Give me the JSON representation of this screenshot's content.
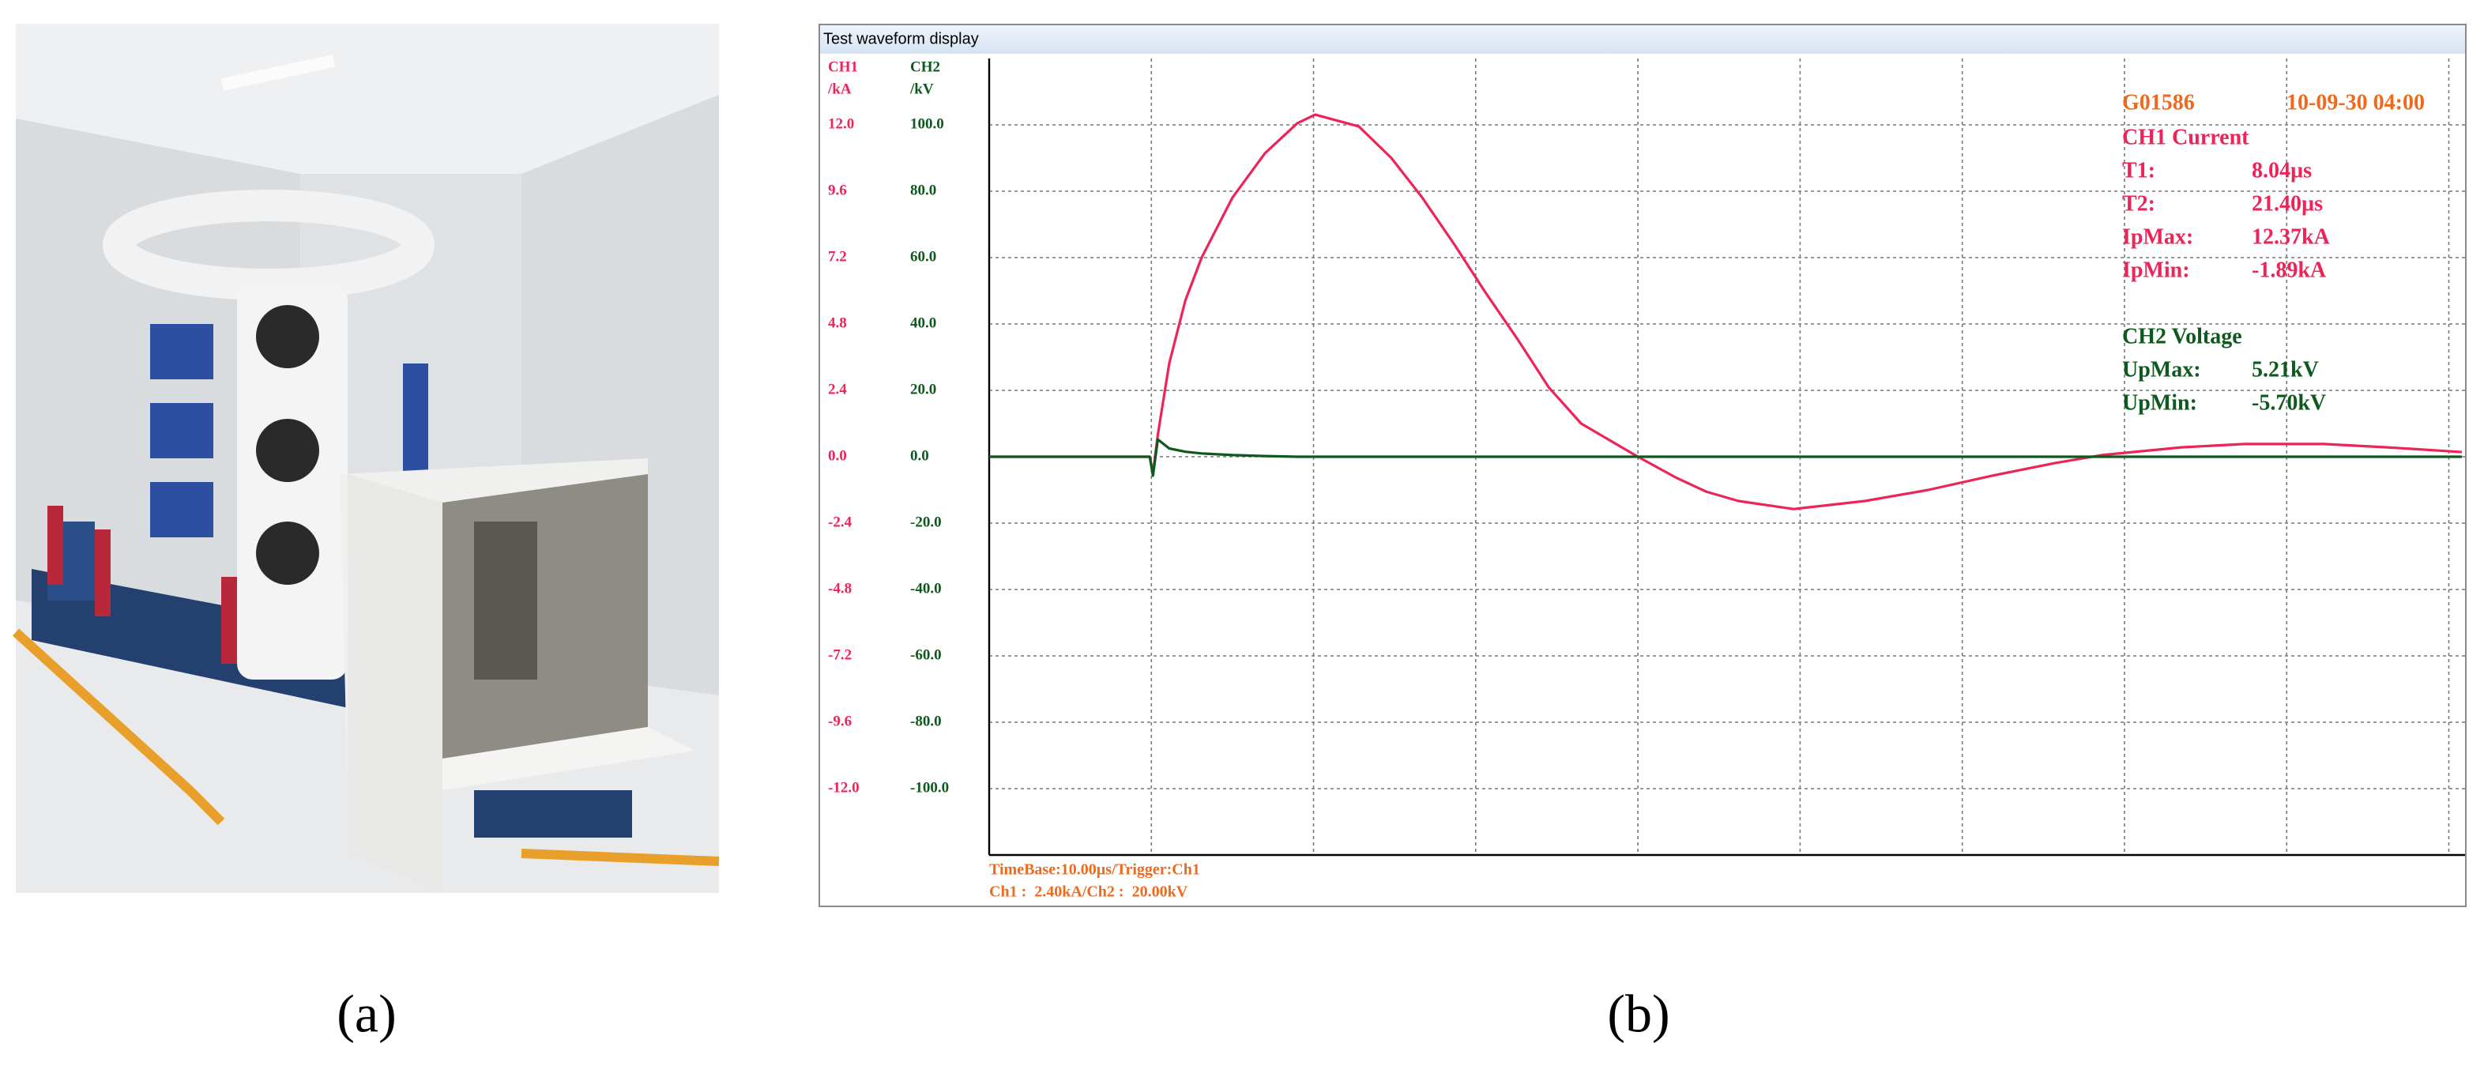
{
  "window_title": "Test waveform display",
  "panel_labels": [
    "(a)",
    "(b)"
  ],
  "chart_data": {
    "type": "line",
    "ylabel": "CH1",
    "yunit": "/kA",
    "y2label": "CH2",
    "y2unit": "/kV",
    "x": [
      0,
      5,
      9.9,
      10.1,
      10.4,
      11.1,
      12.1,
      13.1,
      15,
      17,
      19,
      20.1,
      22.8,
      24.8,
      26.7,
      28.7,
      30.6,
      32.6,
      34.5,
      36.5,
      40,
      42.3,
      44.2,
      46.2,
      49.6,
      54,
      57.9,
      61.8,
      65.7,
      68.6,
      73.5,
      77.4,
      82.3,
      86.2,
      90.8
    ],
    "xlim": [
      0,
      91
    ],
    "xticks": [
      10,
      20,
      30,
      40,
      50,
      60,
      70,
      80,
      90
    ],
    "ylim": [
      -14.4,
      14.4
    ],
    "yticks": [
      {
        "value": 12,
        "label": "12.0"
      },
      {
        "value": 9.6,
        "label": "9.6"
      },
      {
        "value": 7.2,
        "label": "7.2"
      },
      {
        "value": 4.8,
        "label": "4.8"
      },
      {
        "value": 2.4,
        "label": "2.4"
      },
      {
        "value": 0,
        "label": "0.0"
      },
      {
        "value": -2.4,
        "label": "-2.4"
      },
      {
        "value": -4.8,
        "label": "-4.8"
      },
      {
        "value": -7.2,
        "label": "-7.2"
      },
      {
        "value": -9.6,
        "label": "-9.6"
      },
      {
        "value": -12,
        "label": "-12.0"
      }
    ],
    "y2lim": [
      -120,
      120
    ],
    "y2ticks": [
      {
        "value": 100,
        "label": "100.0"
      },
      {
        "value": 80,
        "label": "80.0"
      },
      {
        "value": 60,
        "label": "60.0"
      },
      {
        "value": 40,
        "label": "40.0"
      },
      {
        "value": 20,
        "label": "20.0"
      },
      {
        "value": 0,
        "label": "0.0"
      },
      {
        "value": -20,
        "label": "-20.0"
      },
      {
        "value": -40,
        "label": "-40.0"
      },
      {
        "value": -60,
        "label": "-60.0"
      },
      {
        "value": -80,
        "label": "-80.0"
      },
      {
        "value": -100,
        "label": "-100.0"
      }
    ],
    "grid": true,
    "series": [
      {
        "name": "CH1 Current",
        "color": "#ec2457",
        "values": [
          0,
          0,
          0,
          -0.6,
          0.8,
          3.37,
          5.66,
          7.2,
          9.37,
          10.97,
          12.06,
          12.37,
          11.94,
          10.8,
          9.37,
          7.66,
          5.94,
          4.23,
          2.51,
          1.2,
          0,
          -0.74,
          -1.26,
          -1.6,
          -1.89,
          -1.6,
          -1.2,
          -0.69,
          -0.23,
          0.06,
          0.34,
          0.46,
          0.46,
          0.34,
          0.17
        ]
      },
      {
        "name": "CH2 Voltage",
        "color": "#0e5a1e",
        "axis": "y2",
        "values": [
          0,
          0,
          0,
          -5.7,
          5.21,
          2.5,
          1.5,
          1,
          0.5,
          0.2,
          0,
          0,
          0,
          0,
          0,
          0,
          0,
          0,
          0,
          0,
          0,
          0,
          0,
          0,
          0,
          0,
          0,
          0,
          0,
          0,
          0,
          0,
          0,
          0,
          0
        ]
      }
    ],
    "device_id": "G01586",
    "datetime": "10-09-30 04:00",
    "measurements": [
      [
        {
          "label": "T1:",
          "value": "8.04µs"
        },
        {
          "label": "T2:",
          "value": "21.40µs"
        },
        {
          "label": "IpMax:",
          "value": "12.37kA"
        },
        {
          "label": "IpMin:",
          "value": "-1.89kA"
        }
      ],
      [
        {
          "label": "UpMax:",
          "value": "5.21kV"
        },
        {
          "label": "UpMin:",
          "value": "-5.70kV"
        }
      ]
    ],
    "footer": [
      "TimeBase:10.00µs/Trigger:Ch1",
      "Ch1 :  2.40kA/Ch2 :  20.00kV"
    ]
  }
}
